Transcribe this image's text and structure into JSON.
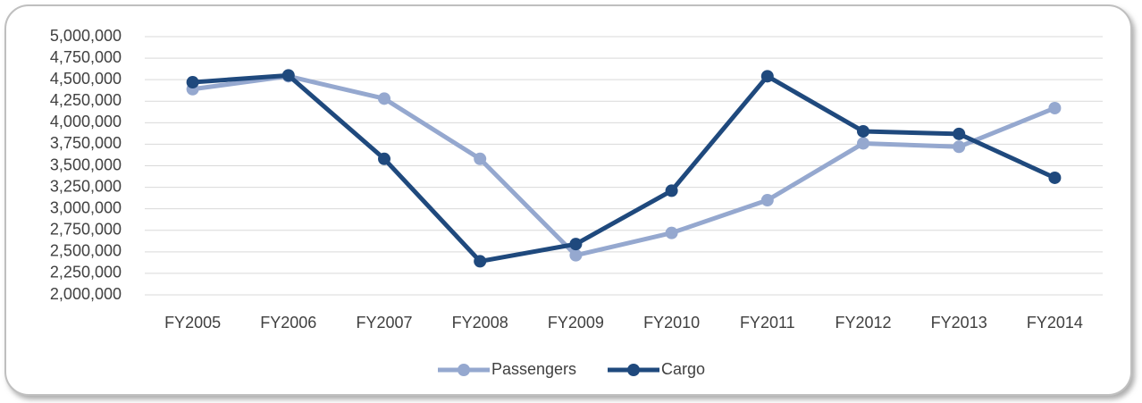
{
  "chart_data": {
    "type": "line",
    "categories": [
      "FY2005",
      "FY2006",
      "FY2007",
      "FY2008",
      "FY2009",
      "FY2010",
      "FY2011",
      "FY2012",
      "FY2013",
      "FY2014"
    ],
    "series": [
      {
        "name": "Passengers",
        "color": "#95a8cf",
        "values": [
          4390000,
          4540000,
          4280000,
          3580000,
          2460000,
          2720000,
          3100000,
          3760000,
          3720000,
          4170000
        ]
      },
      {
        "name": "Cargo",
        "color": "#1f497d",
        "values": [
          4470000,
          4550000,
          3580000,
          2390000,
          2590000,
          3210000,
          4540000,
          3900000,
          3870000,
          3360000
        ]
      }
    ],
    "ylim": [
      2000000,
      5000000
    ],
    "yticks": [
      {
        "value": 2000000,
        "label": "2,000,000"
      },
      {
        "value": 2250000,
        "label": "2,250,000"
      },
      {
        "value": 2500000,
        "label": "2,500,000"
      },
      {
        "value": 2750000,
        "label": "2,750,000"
      },
      {
        "value": 3000000,
        "label": "3,000,000"
      },
      {
        "value": 3250000,
        "label": "3,250,000"
      },
      {
        "value": 3500000,
        "label": "3,500,000"
      },
      {
        "value": 3750000,
        "label": "3,750,000"
      },
      {
        "value": 4000000,
        "label": "4,000,000"
      },
      {
        "value": 4250000,
        "label": "4,250,000"
      },
      {
        "value": 4500000,
        "label": "4,500,000"
      },
      {
        "value": 4750000,
        "label": "4,750,000"
      },
      {
        "value": 5000000,
        "label": "5,000,000"
      }
    ],
    "grid": true,
    "legend": "bottom"
  }
}
